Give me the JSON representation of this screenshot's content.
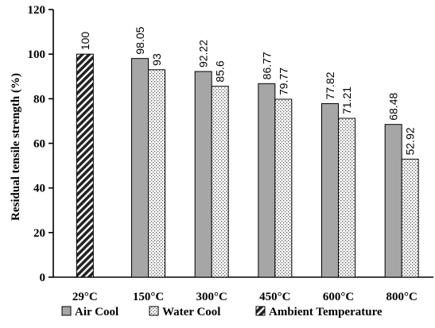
{
  "chart_data": {
    "type": "bar",
    "ylabel": "Residual tensile strength (%)",
    "xlabel": "",
    "ylim": [
      0,
      120
    ],
    "yticks": [
      0,
      20,
      40,
      60,
      80,
      100,
      120
    ],
    "categories": [
      "29°C",
      "150°C",
      "300°C",
      "450°C",
      "600°C",
      "800°C"
    ],
    "series": [
      {
        "name": "Air Cool",
        "pattern": "solid-gray",
        "color": "#a6a6a6",
        "values": [
          null,
          98.05,
          92.22,
          86.77,
          77.82,
          68.48
        ]
      },
      {
        "name": "Water Cool",
        "pattern": "dotted",
        "color": "#ffffff",
        "values": [
          null,
          93,
          85.6,
          79.77,
          71.21,
          52.92
        ]
      },
      {
        "name": "Ambient Temperature",
        "pattern": "diagonal-hatch",
        "color": "#222222",
        "values": [
          100,
          null,
          null,
          null,
          null,
          null
        ]
      }
    ],
    "data_labels": {
      "Air Cool": [
        "",
        "98.05",
        "92.22",
        "86.77",
        "77.82",
        "68.48"
      ],
      "Water Cool": [
        "",
        "93",
        "85.6",
        "79.77",
        "71.21",
        "52.92"
      ],
      "Ambient Temperature": [
        "100",
        "",
        "",
        "",
        "",
        ""
      ]
    },
    "grid": false,
    "legend_position": "bottom"
  }
}
